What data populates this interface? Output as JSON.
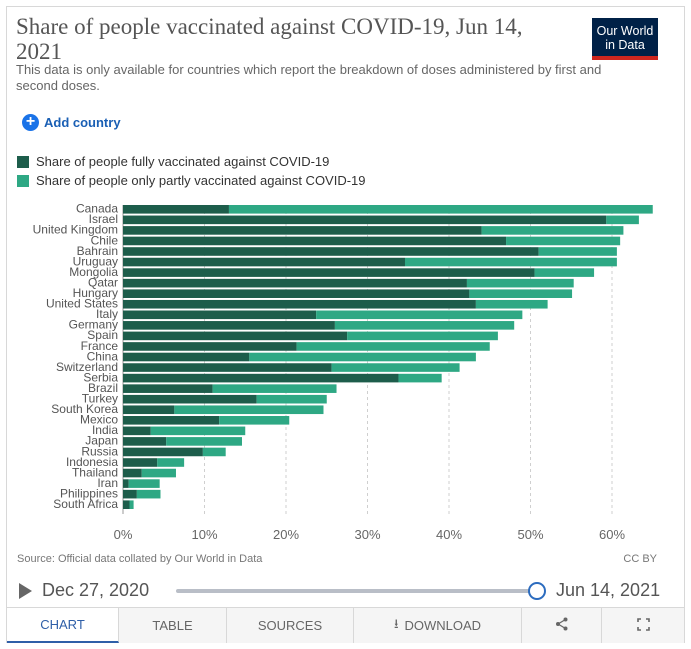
{
  "header": {
    "title": "Share of people vaccinated against COVID-19, Jun 14, 2021",
    "subtitle": "This data is only available for countries which report the breakdown of doses administered by first and second doses.",
    "logo_line1": "Our World",
    "logo_line2": "in Data"
  },
  "controls": {
    "add_country_label": "Add country",
    "add_icon": "plus-circle-icon"
  },
  "legend": [
    {
      "label": "Share of people fully vaccinated against COVID-19",
      "color": "#1d5d4b"
    },
    {
      "label": "Share of people only partly vaccinated against COVID-19",
      "color": "#2ea884"
    }
  ],
  "chart_data": {
    "type": "bar",
    "orientation": "horizontal",
    "stacked": true,
    "categories": [
      "Canada",
      "Israel",
      "United Kingdom",
      "Chile",
      "Bahrain",
      "Uruguay",
      "Mongolia",
      "Qatar",
      "Hungary",
      "United States",
      "Italy",
      "Germany",
      "Spain",
      "France",
      "China",
      "Switzerland",
      "Serbia",
      "Brazil",
      "Turkey",
      "South Korea",
      "Mexico",
      "India",
      "Japan",
      "Russia",
      "Indonesia",
      "Thailand",
      "Iran",
      "Philippines",
      "South Africa"
    ],
    "series": [
      {
        "name": "Share of people fully vaccinated against COVID-19",
        "color": "#1d5d4b",
        "values": [
          13,
          59.3,
          44,
          47,
          51,
          34.6,
          50.5,
          42.2,
          42.5,
          43.3,
          23.7,
          26,
          27.5,
          21.3,
          15.5,
          25.6,
          33.8,
          11,
          16.4,
          6.3,
          11.8,
          3.4,
          5.3,
          9.8,
          4.2,
          2.3,
          0.7,
          1.7,
          0.8
        ]
      },
      {
        "name": "Share of people only partly vaccinated against COVID-19",
        "color": "#2ea884",
        "values": [
          52,
          4,
          17.4,
          14,
          9.6,
          26,
          7.3,
          13.1,
          12.6,
          8.8,
          25.3,
          22,
          18.5,
          23.7,
          27.8,
          15.7,
          5.3,
          15.2,
          8.6,
          18.3,
          8.6,
          11.6,
          9.3,
          2.8,
          3.3,
          4.2,
          3.8,
          2.9,
          0.5
        ]
      }
    ],
    "xlim": [
      0,
      65
    ],
    "xticks": [
      "0%",
      "10%",
      "20%",
      "30%",
      "40%",
      "50%",
      "60%"
    ],
    "xtick_values": [
      0,
      10,
      20,
      30,
      40,
      50,
      60
    ],
    "grid": "vertical-dashed",
    "legend_position": "top-left"
  },
  "footer": {
    "source": "Source: Official data collated by Our World in Data",
    "license": "CC BY"
  },
  "timeline": {
    "start_date": "Dec 27, 2020",
    "end_date": "Jun 14, 2021",
    "play_icon": "play-icon"
  },
  "tabs": [
    {
      "label": "CHART",
      "active": true
    },
    {
      "label": "TABLE"
    },
    {
      "label": "SOURCES"
    },
    {
      "label": "DOWNLOAD",
      "icon": "download-icon"
    },
    {
      "label": "",
      "icon": "share-icon"
    },
    {
      "label": "",
      "icon": "fullscreen-icon"
    }
  ]
}
